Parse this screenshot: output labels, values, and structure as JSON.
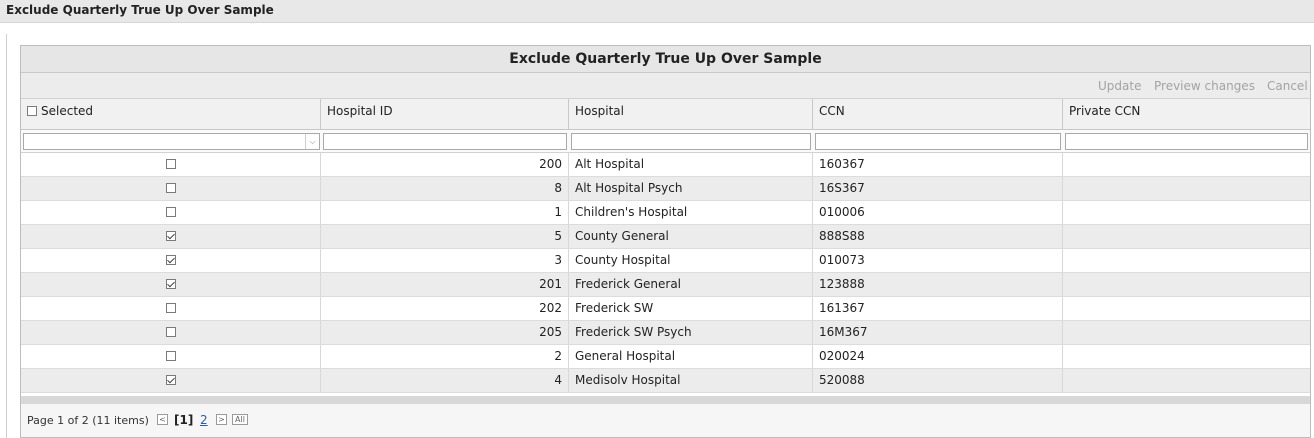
{
  "page": {
    "title": "Exclude Quarterly True Up Over Sample"
  },
  "grid": {
    "title": "Exclude Quarterly True Up Over Sample",
    "toolbar": {
      "update": "Update",
      "preview": "Preview changes",
      "cancel": "Cancel"
    },
    "columns": {
      "selected": "Selected",
      "hospital_id": "Hospital ID",
      "hospital": "Hospital",
      "ccn": "CCN",
      "private_ccn": "Private CCN"
    },
    "rows": [
      {
        "selected": false,
        "hospital_id": "200",
        "hospital": "Alt Hospital",
        "ccn": "160367",
        "private_ccn": ""
      },
      {
        "selected": false,
        "hospital_id": "8",
        "hospital": "Alt Hospital Psych",
        "ccn": "16S367",
        "private_ccn": ""
      },
      {
        "selected": false,
        "hospital_id": "1",
        "hospital": "Children's Hospital",
        "ccn": "010006",
        "private_ccn": ""
      },
      {
        "selected": true,
        "hospital_id": "5",
        "hospital": "County General",
        "ccn": "888S88",
        "private_ccn": ""
      },
      {
        "selected": true,
        "hospital_id": "3",
        "hospital": "County Hospital",
        "ccn": "010073",
        "private_ccn": ""
      },
      {
        "selected": true,
        "hospital_id": "201",
        "hospital": "Frederick General",
        "ccn": "123888",
        "private_ccn": ""
      },
      {
        "selected": false,
        "hospital_id": "202",
        "hospital": "Frederick SW",
        "ccn": "161367",
        "private_ccn": ""
      },
      {
        "selected": false,
        "hospital_id": "205",
        "hospital": "Frederick SW Psych",
        "ccn": "16M367",
        "private_ccn": ""
      },
      {
        "selected": false,
        "hospital_id": "2",
        "hospital": "General Hospital",
        "ccn": "020024",
        "private_ccn": ""
      },
      {
        "selected": true,
        "hospital_id": "4",
        "hospital": "Medisolv Hospital",
        "ccn": "520088",
        "private_ccn": ""
      }
    ]
  },
  "pager": {
    "info": "Page 1 of 2 (11 items)",
    "prev": "<",
    "current": "[1]",
    "page2": "2",
    "next": ">",
    "all": "All"
  }
}
